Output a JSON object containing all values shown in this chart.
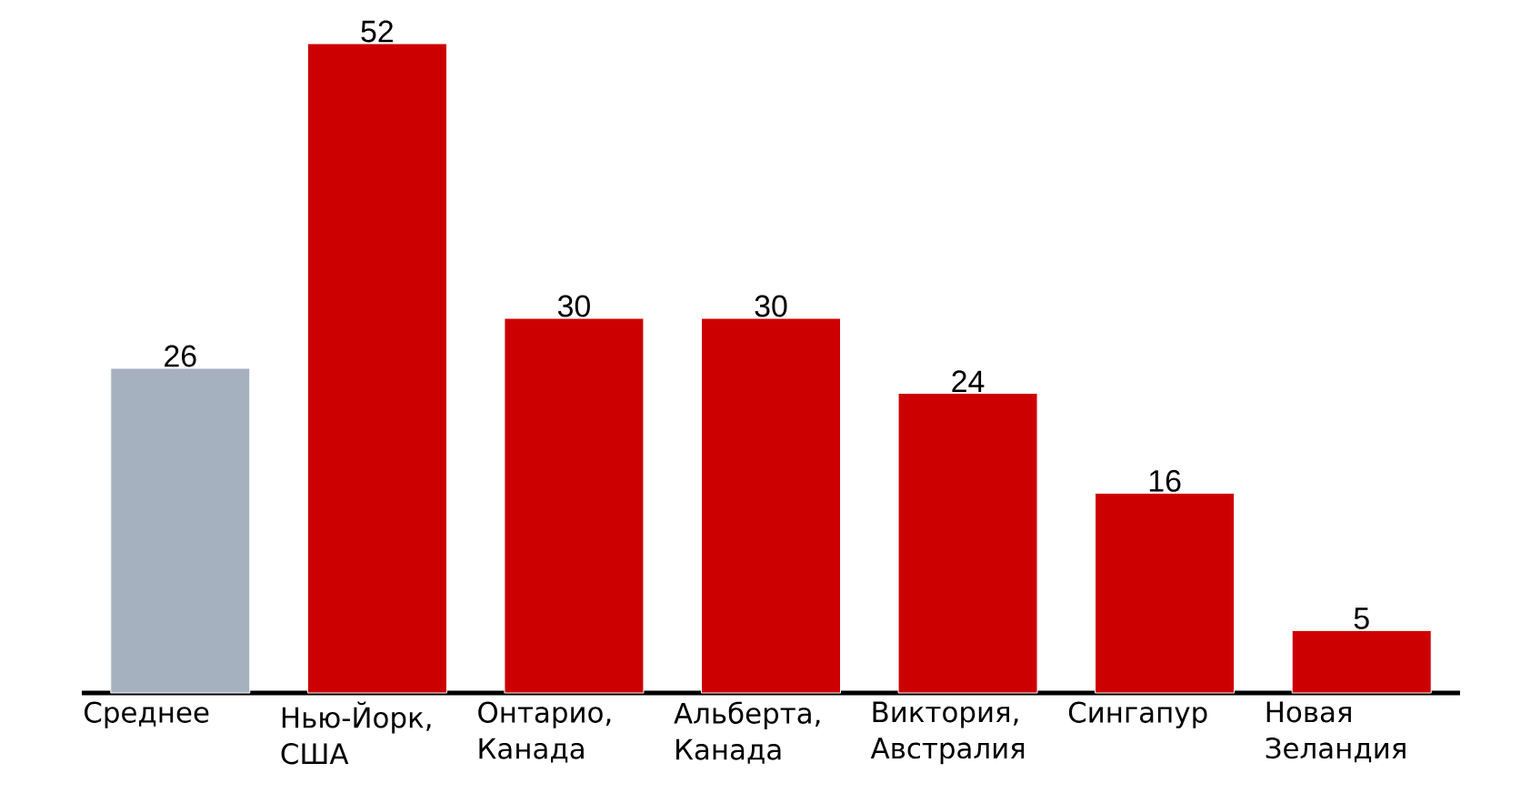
{
  "chart_data": {
    "type": "bar",
    "categories": [
      "Среднее",
      "Нью-Йорк, США",
      "Онтарио, Канада",
      "Альберта, Канада",
      "Виктория, Австралия",
      "Сингапур",
      "Новая Зеландия"
    ],
    "values": [
      26,
      52,
      30,
      30,
      24,
      16,
      5
    ],
    "colors": [
      "#a5b1be",
      "#cc0000",
      "#cc0000",
      "#cc0000",
      "#cc0000",
      "#cc0000",
      "#cc0000"
    ],
    "data_labels": true
  }
}
